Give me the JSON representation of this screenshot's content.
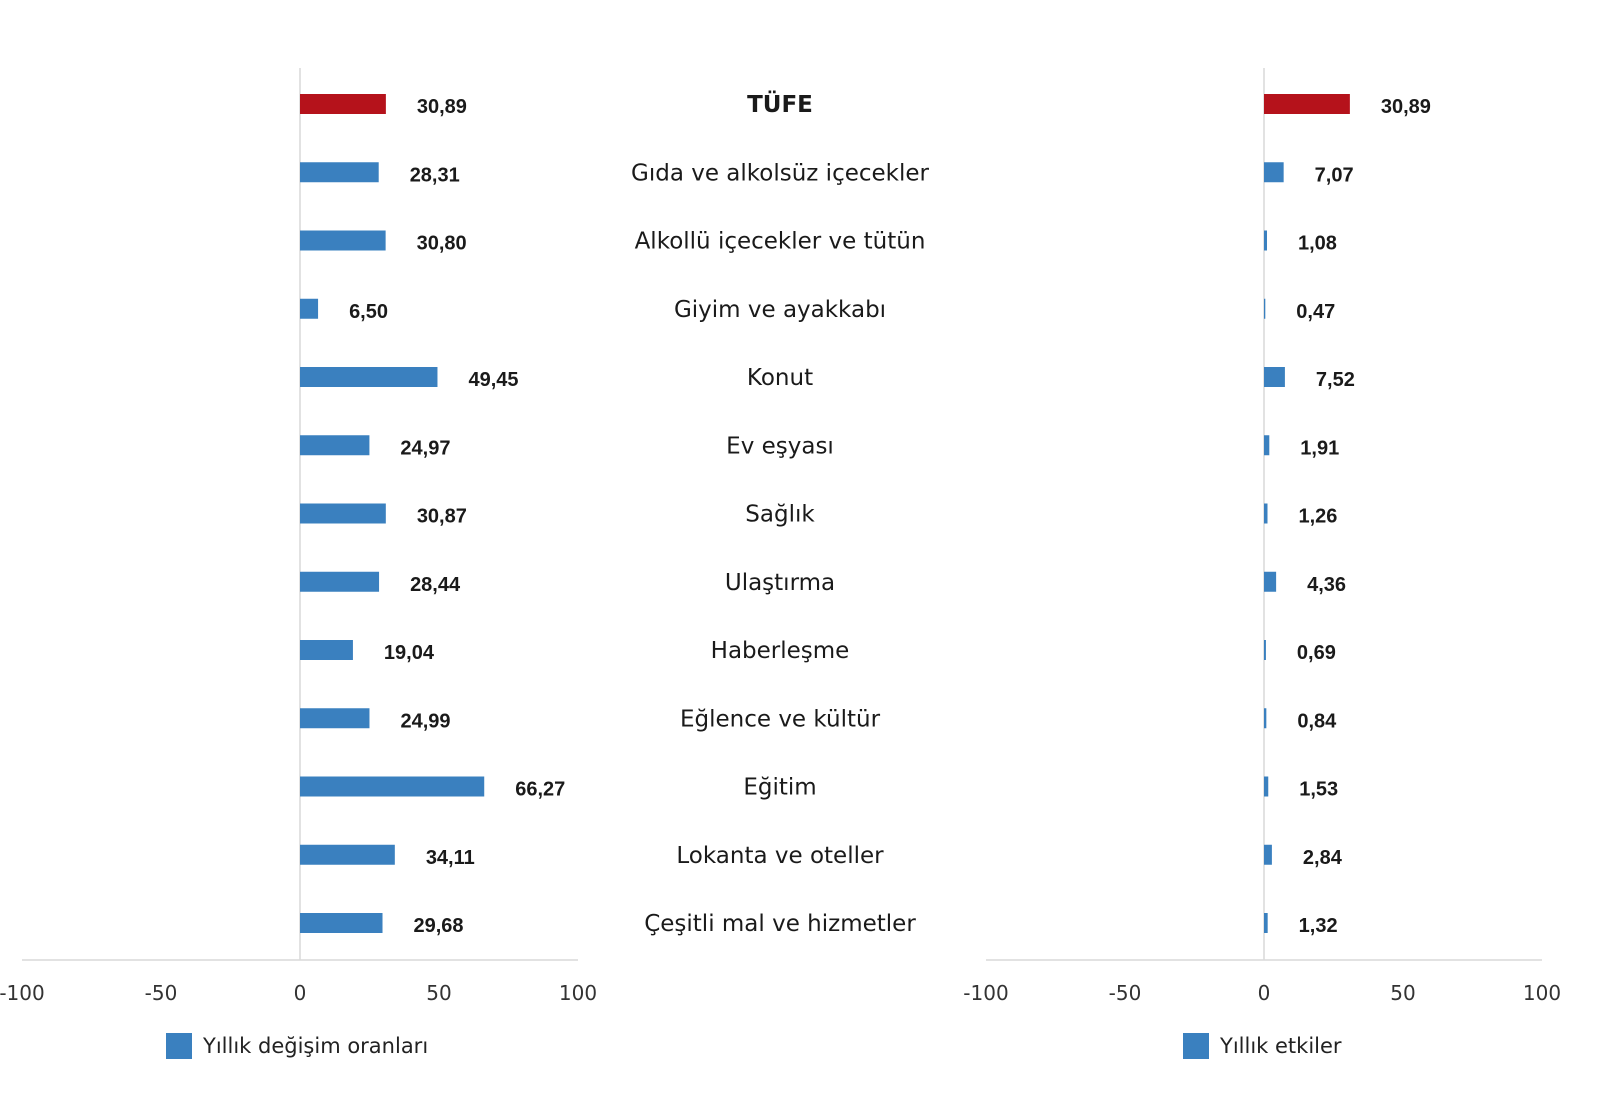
{
  "categories": [
    "TÜFE",
    "Gıda ve alkolsüz içecekler",
    "Alkollü içecekler ve tütün",
    "Giyim ve ayakkabı",
    "Konut",
    "Ev eşyası",
    "Sağlık",
    "Ulaştırma",
    "Haberleşme",
    "Eğlence ve kültür",
    "Eğitim",
    "Lokanta ve oteller",
    "Çeşitli mal ve hizmetler"
  ],
  "colors": {
    "highlight": "#b5121b",
    "bar": "#3a80bf",
    "axis": "#d9d9d9"
  },
  "chart_data": [
    {
      "type": "bar",
      "orientation": "horizontal",
      "series": [
        {
          "name": "Yıllık değişim oranları",
          "values": [
            30.89,
            28.31,
            30.8,
            6.5,
            49.45,
            24.97,
            30.87,
            28.44,
            19.04,
            24.99,
            66.27,
            34.11,
            29.68
          ],
          "labels": [
            "30,89",
            "28,31",
            "30,80",
            "6,50",
            "49,45",
            "24,97",
            "30,87",
            "28,44",
            "19,04",
            "24,99",
            "66,27",
            "34,11",
            "29,68"
          ]
        }
      ],
      "xlim": [
        -100,
        100
      ],
      "xticks": [
        "-100",
        "-50",
        "0",
        "50",
        "100"
      ],
      "legend": "bottom"
    },
    {
      "type": "bar",
      "orientation": "horizontal",
      "series": [
        {
          "name": "Yıllık etkiler",
          "values": [
            30.89,
            7.07,
            1.08,
            0.47,
            7.52,
            1.91,
            1.26,
            4.36,
            0.69,
            0.84,
            1.53,
            2.84,
            1.32
          ],
          "labels": [
            "30,89",
            "7,07",
            "1,08",
            "0,47",
            "7,52",
            "1,91",
            "1,26",
            "4,36",
            "0,69",
            "0,84",
            "1,53",
            "2,84",
            "1,32"
          ]
        }
      ],
      "xlim": [
        -100,
        100
      ],
      "xticks": [
        "-100",
        "-50",
        "0",
        "50",
        "100"
      ],
      "legend": "bottom"
    }
  ]
}
